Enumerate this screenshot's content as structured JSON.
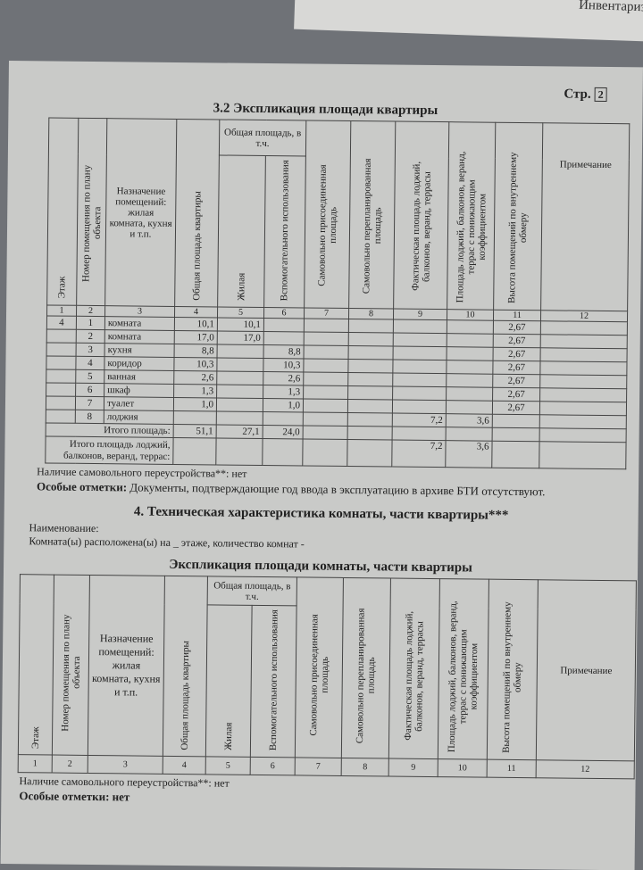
{
  "header": {
    "background_title": "Инвентаризаци",
    "page_label": "Стр.",
    "page_number": "2"
  },
  "section1": {
    "title": "3.2 Экспликация площади квартиры",
    "columns": [
      "Этаж",
      "Номер помещения по плану объекта",
      "Назначение помещений: жилая комната, кухня и т.п.",
      "Общая площадь квартиры",
      "Общая площадь, в т.ч.",
      "Жилая",
      "Вспомогательного использования",
      "Самовольно присоединенная площадь",
      "Самовольно перепланированная площадь",
      "Фактическая площадь лоджий, балконов, веранд, террасы",
      "Площадь лоджий, балконов, веранд, террас с понижающим коэффициентом",
      "Высота помещений по внутреннему обмеру",
      "Примечание"
    ],
    "col_numbers": [
      "1",
      "2",
      "3",
      "4",
      "5",
      "6",
      "7",
      "8",
      "9",
      "10",
      "11",
      "12"
    ],
    "rows": [
      {
        "floor": "4",
        "num": "1",
        "name": "комната",
        "total": "10,1",
        "living": "10,1",
        "aux": "",
        "c9": "",
        "c10": "",
        "height": "2,67"
      },
      {
        "floor": "",
        "num": "2",
        "name": "комната",
        "total": "17,0",
        "living": "17,0",
        "aux": "",
        "c9": "",
        "c10": "",
        "height": "2,67"
      },
      {
        "floor": "",
        "num": "3",
        "name": "кухня",
        "total": "8,8",
        "living": "",
        "aux": "8,8",
        "c9": "",
        "c10": "",
        "height": "2,67"
      },
      {
        "floor": "",
        "num": "4",
        "name": "коридор",
        "total": "10,3",
        "living": "",
        "aux": "10,3",
        "c9": "",
        "c10": "",
        "height": "2,67"
      },
      {
        "floor": "",
        "num": "5",
        "name": "ванная",
        "total": "2,6",
        "living": "",
        "aux": "2,6",
        "c9": "",
        "c10": "",
        "height": "2,67"
      },
      {
        "floor": "",
        "num": "6",
        "name": "шкаф",
        "total": "1,3",
        "living": "",
        "aux": "1,3",
        "c9": "",
        "c10": "",
        "height": "2,67"
      },
      {
        "floor": "",
        "num": "7",
        "name": "туалет",
        "total": "1,0",
        "living": "",
        "aux": "1,0",
        "c9": "",
        "c10": "",
        "height": "2,67"
      },
      {
        "floor": "",
        "num": "8",
        "name": "лоджия",
        "total": "",
        "living": "",
        "aux": "",
        "c9": "7,2",
        "c10": "3,6",
        "height": ""
      }
    ],
    "total_label": "Итого площадь:",
    "total": {
      "total": "51,1",
      "living": "27,1",
      "aux": "24,0"
    },
    "loggia_label": "Итого площадь лоджий, балконов, веранд, террас:",
    "loggia": {
      "c9": "7,2",
      "c10": "3,6"
    },
    "reconstruction": "Наличие самовольного переустройства**: нет",
    "notes_label": "Особые отметки:",
    "notes": "Документы, подтверждающие год ввода в эксплуатацию в архиве БТИ отсутствуют."
  },
  "section2": {
    "title": "4. Техническая характеристика комнаты, части квартиры***",
    "name_label": "Наименование:",
    "location": "Комната(ы) расположена(ы) на _ этаже, количество комнат -",
    "table_title": "Экспликация площади комнаты, части квартиры",
    "reconstruction": "Наличие самовольного переустройства**: нет",
    "notes": "Особые отметки: нет"
  }
}
